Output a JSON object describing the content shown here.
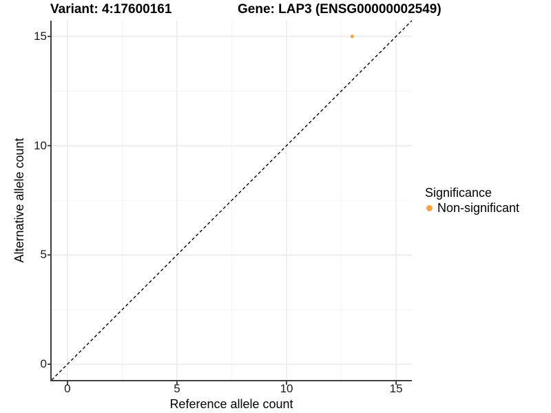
{
  "chart_data": {
    "type": "scatter",
    "title_left": "Variant: 4:17600161",
    "title_right": "Gene: LAP3 (ENSG00000002549)",
    "xlabel": "Reference allele count",
    "ylabel": "Alternative allele count",
    "xlim": [
      -0.72,
      15.72
    ],
    "ylim": [
      -0.72,
      15.72
    ],
    "x_ticks": [
      0,
      5,
      10,
      15
    ],
    "y_ticks": [
      0,
      5,
      10,
      15
    ],
    "x_minor_ticks": [
      2.5,
      7.5,
      12.5
    ],
    "y_minor_ticks": [
      2.5,
      7.5,
      12.5
    ],
    "grid": "major+minor",
    "points": [
      {
        "x": 13,
        "y": 15,
        "series": "Non-significant"
      }
    ],
    "point_radius": 2.6,
    "reference_line": {
      "kind": "identity-diagonal",
      "style": "dashed",
      "color": "#000000"
    },
    "legend": {
      "title": "Significance",
      "position": "right",
      "entries": [
        {
          "label": "Non-significant",
          "color": "#F9A242"
        }
      ]
    },
    "colors": {
      "point": "#F9A242",
      "grid_major": "#E8E8E8",
      "grid_minor": "#F4F4F4",
      "axis_line": "#3F3F3F",
      "tick_mark": "#333333",
      "text": "#000000",
      "background": "#FFFFFF"
    }
  }
}
